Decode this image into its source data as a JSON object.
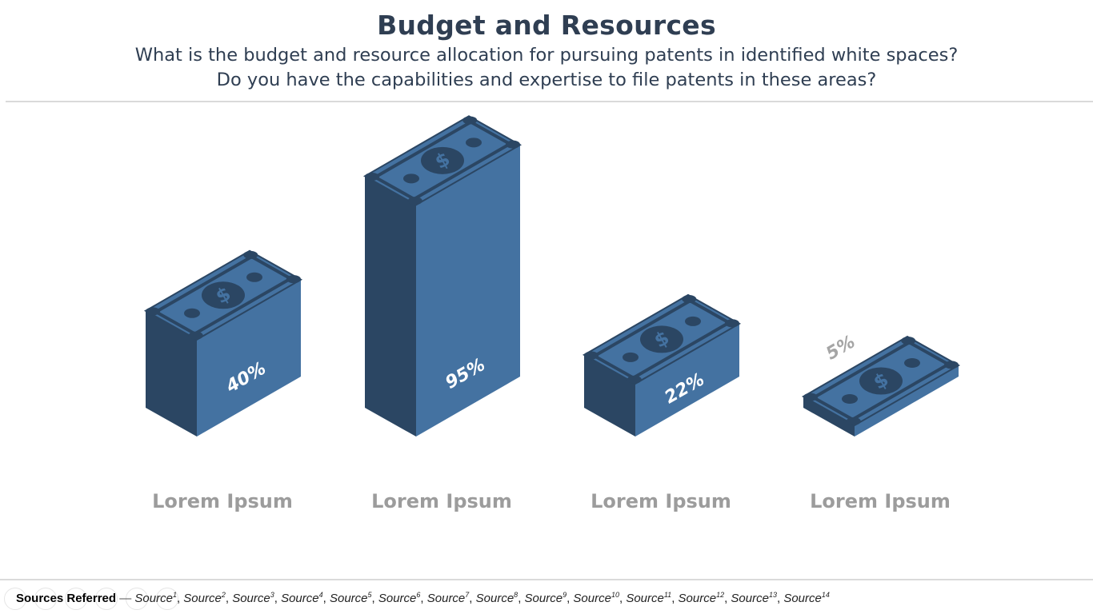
{
  "header": {
    "title": "Budget and Resources",
    "subtitle_line1": "What is the budget and resource allocation for pursuing patents in identified white spaces?",
    "subtitle_line2": "Do you have the capabilities and expertise to file patents in these areas?"
  },
  "chart_data": {
    "type": "bar",
    "style": "isometric money stacks",
    "categories": [
      "Lorem Ipsum",
      "Lorem Ipsum",
      "Lorem Ipsum",
      "Lorem Ipsum"
    ],
    "values": [
      40,
      95,
      22,
      5
    ],
    "value_labels": [
      "40%",
      "95%",
      "22%",
      "5%"
    ],
    "unit": "%",
    "icon": "dollar-bill-icon",
    "colors": {
      "front": "#4472a1",
      "side": "#2b4663",
      "bill_dark": "#2b4663",
      "label_text": "#9c9c9c",
      "value_text": "#ffffff",
      "small_value_text": "#a5a5a5"
    }
  },
  "footer": {
    "label": "Sources Referred",
    "separator": "—",
    "sources": [
      "Source",
      "Source",
      "Source",
      "Source",
      "Source",
      "Source",
      "Source",
      "Source",
      "Source",
      "Source",
      "Source",
      "Source",
      "Source",
      "Source"
    ],
    "source_numbers": [
      "1",
      "2",
      "3",
      "4",
      "5",
      "6",
      "7",
      "8",
      "9",
      "10",
      "11",
      "12",
      "13",
      "14"
    ]
  }
}
